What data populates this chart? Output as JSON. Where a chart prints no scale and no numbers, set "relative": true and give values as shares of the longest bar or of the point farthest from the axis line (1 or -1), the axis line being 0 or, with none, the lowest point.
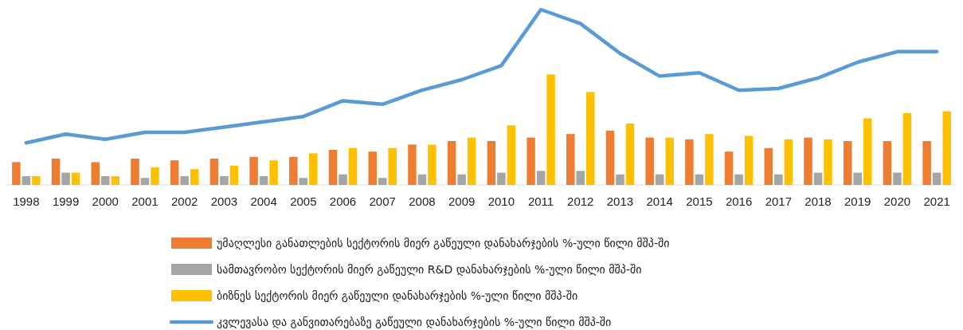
{
  "chart_data": {
    "type": "bar",
    "relative": true,
    "legend": "bottom",
    "categories": [
      "1998",
      "1999",
      "2000",
      "2001",
      "2002",
      "2003",
      "2004",
      "2005",
      "2006",
      "2007",
      "2008",
      "2009",
      "2010",
      "2011",
      "2012",
      "2013",
      "2014",
      "2015",
      "2016",
      "2017",
      "2018",
      "2019",
      "2020",
      "2021"
    ],
    "series": [
      {
        "name": "უმაღლესი განათლების სექტორის მიერ გაწეული დანახარჯების %-ული წილი მშპ-ში",
        "color": "#ed7d31",
        "values": [
          0.13,
          0.15,
          0.13,
          0.15,
          0.14,
          0.15,
          0.16,
          0.16,
          0.2,
          0.19,
          0.23,
          0.25,
          0.25,
          0.27,
          0.29,
          0.31,
          0.27,
          0.26,
          0.19,
          0.21,
          0.27,
          0.25,
          0.25,
          0.25
        ]
      },
      {
        "name": "სამთავრობო სექტორის მიერ გაწეული R&D დანახარჯების %-ული წილი მშპ-ში",
        "color": "#a5a5a5",
        "values": [
          0.05,
          0.07,
          0.05,
          0.04,
          0.05,
          0.05,
          0.05,
          0.04,
          0.06,
          0.04,
          0.06,
          0.06,
          0.07,
          0.08,
          0.08,
          0.06,
          0.06,
          0.06,
          0.06,
          0.06,
          0.07,
          0.07,
          0.07,
          0.07
        ]
      },
      {
        "name": "ბიზნეს სექტორის მიერ გაწეული დანახარჯების %-ული წილი მშპ-ში",
        "color": "#ffc000",
        "values": [
          0.05,
          0.07,
          0.05,
          0.1,
          0.09,
          0.11,
          0.14,
          0.18,
          0.21,
          0.21,
          0.23,
          0.27,
          0.34,
          0.63,
          0.53,
          0.35,
          0.27,
          0.29,
          0.28,
          0.26,
          0.26,
          0.38,
          0.41,
          0.42
        ]
      },
      {
        "name": "კვლევასა და განვითარებაზე გაწეული დანახარჯების %-ული წილი მშპ-ში",
        "type": "line",
        "color": "#5b9bd5",
        "values": [
          0.24,
          0.29,
          0.26,
          0.3,
          0.3,
          0.33,
          0.36,
          0.39,
          0.48,
          0.46,
          0.54,
          0.6,
          0.68,
          1,
          0.92,
          0.75,
          0.62,
          0.64,
          0.54,
          0.55,
          0.61,
          0.7,
          0.76,
          0.76
        ]
      }
    ]
  }
}
